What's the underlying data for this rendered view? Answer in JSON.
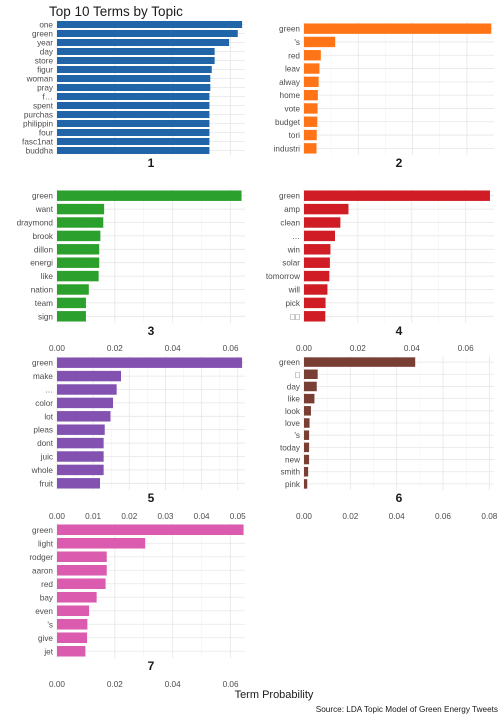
{
  "chart_data": {
    "type": "bar",
    "title": "Top 10 Terms by Topic",
    "xlabel": "Term Probability",
    "caption": "Source: LDA Topic Model of Green Energy Tweets",
    "grid": true,
    "panels": [
      {
        "label": "1",
        "color": "#1F65A8",
        "xlim": [
          0,
          0.065
        ],
        "ticks": [],
        "terms": [
          "one",
          "green",
          "year",
          "day",
          "store",
          "figur",
          "woman",
          "pray",
          "f…",
          "spent",
          "purchas",
          "philippin",
          "four",
          "fasc1nat",
          "buddha"
        ],
        "values": [
          0.064,
          0.0625,
          0.0595,
          0.0545,
          0.0545,
          0.0535,
          0.053,
          0.053,
          0.0527,
          0.0527,
          0.0527,
          0.0527,
          0.0527,
          0.0527,
          0.0527
        ]
      },
      {
        "label": "2",
        "color": "#FF7417",
        "xlim": [
          0,
          0.072
        ],
        "ticks": [],
        "terms": [
          "green",
          "'s",
          "red",
          "leav",
          "alway",
          "home",
          "vote",
          "budget",
          "tori",
          "industri"
        ],
        "values": [
          0.069,
          0.0115,
          0.0062,
          0.0057,
          0.0054,
          0.0051,
          0.005,
          0.0049,
          0.0047,
          0.0046
        ]
      },
      {
        "label": "3",
        "color": "#2CA02C",
        "xlim": [
          0,
          0.065
        ],
        "ticks": [
          "0.00",
          "0.02",
          "0.04",
          "0.06"
        ],
        "tick_values": [
          0,
          0.02,
          0.04,
          0.06
        ],
        "terms": [
          "green",
          "want",
          "draymond",
          "brook",
          "dillon",
          "energi",
          "like",
          "nation",
          "team",
          "sign"
        ],
        "values": [
          0.0638,
          0.0163,
          0.016,
          0.015,
          0.0146,
          0.0146,
          0.0144,
          0.011,
          0.01,
          0.01
        ]
      },
      {
        "label": "4",
        "color": "#D01C24",
        "xlim": [
          0,
          0.072
        ],
        "ticks": [
          "0.00",
          "0.02",
          "0.04",
          "0.06"
        ],
        "tick_values": [
          0,
          0.02,
          0.04,
          0.06
        ],
        "terms": [
          "green",
          "amp",
          "clean",
          "…",
          "win",
          "solar",
          "tomorrow",
          "will",
          "pick",
          "□□"
        ],
        "values": [
          0.069,
          0.0165,
          0.0135,
          0.0115,
          0.0098,
          0.0096,
          0.0094,
          0.0087,
          0.008,
          0.0079
        ]
      },
      {
        "label": "5",
        "color": "#8352B0",
        "xlim": [
          0,
          0.049
        ],
        "ticks": [
          "0.00",
          "0.01",
          "0.02",
          "0.03",
          "0.04",
          "0.05"
        ],
        "tick_values": [
          0,
          0.01,
          0.02,
          0.03,
          0.04,
          0.05
        ],
        "terms": [
          "green",
          "make",
          "…",
          "color",
          "lot",
          "pleas",
          "dont",
          "juic",
          "whole",
          "fruit"
        ],
        "values": [
          0.0512,
          0.0177,
          0.0165,
          0.0155,
          0.0148,
          0.0132,
          0.0129,
          0.0129,
          0.0129,
          0.0119
        ]
      },
      {
        "label": "6",
        "color": "#793F35",
        "xlim": [
          0,
          0.049
        ],
        "ticks": [
          "0.00",
          "0.01",
          "0.02",
          "0.03",
          "0.04",
          "0.05"
        ],
        "tick_values": [
          0,
          0.01,
          0.02,
          0.03,
          0.04,
          0.05
        ],
        "terms": [
          "green",
          "□",
          "day",
          "like",
          "look",
          "love",
          "'s",
          "today",
          "new",
          "smith",
          "pink"
        ],
        "values": [
          0.048,
          0.0059,
          0.0055,
          0.0045,
          0.003,
          0.0024,
          0.0022,
          0.0022,
          0.0022,
          0.0018,
          0.0014
        ]
      },
      {
        "label": "7",
        "color": "#DB5BAF",
        "xlim": [
          0,
          0.065
        ],
        "ticks": [
          "0.00",
          "0.02",
          "0.04",
          "0.06"
        ],
        "tick_values": [
          0,
          0.02,
          0.04,
          0.06
        ],
        "terms": [
          "green",
          "light",
          "rodger",
          "aaron",
          "red",
          "bay",
          "even",
          "'s",
          "give",
          "jet"
        ],
        "values": [
          0.0645,
          0.0305,
          0.0172,
          0.0172,
          0.0168,
          0.0137,
          0.0111,
          0.0105,
          0.0104,
          0.0098
        ]
      }
    ]
  },
  "panel6_axis": {
    "ticks": [
      "0.00",
      "0.02",
      "0.04",
      "0.06",
      "0.08"
    ],
    "tick_values": [
      0,
      0.02,
      0.04,
      0.06,
      0.08
    ]
  }
}
